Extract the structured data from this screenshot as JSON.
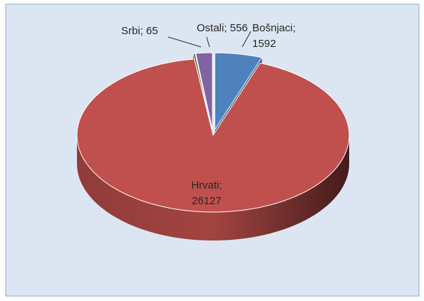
{
  "chart_data": {
    "type": "pie",
    "three_d": true,
    "values": [
      1592,
      26127,
      65,
      556
    ],
    "value_labels": [
      "Bošnjaci; 1592",
      "Hrvati; 26127",
      "Srbi; 65",
      "Ostali; 556"
    ],
    "colors": [
      "#4f81bd",
      "#c0504d",
      "#4f6228",
      "#8064a2"
    ],
    "exploded": [
      true,
      false,
      true,
      true
    ]
  }
}
